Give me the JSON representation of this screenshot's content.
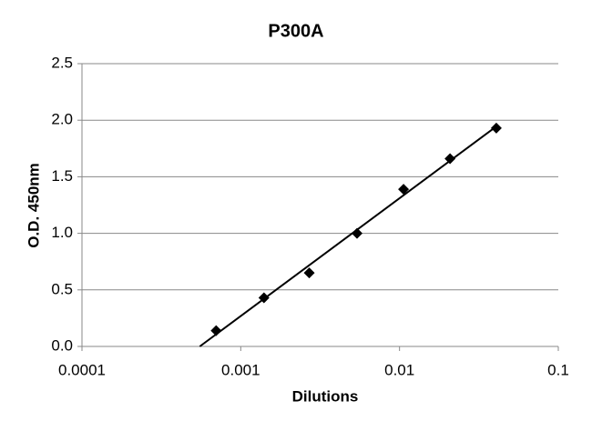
{
  "chart_data": {
    "type": "scatter",
    "title": "P300A",
    "x_label": "Dilutions",
    "y_label": "O.D. 450nm",
    "x": [
      0.0007,
      0.0014,
      0.0027,
      0.0054,
      0.0106,
      0.0208,
      0.0407
    ],
    "values": [
      0.14,
      0.43,
      0.65,
      1.0,
      1.39,
      1.66,
      1.93
    ],
    "color": "#000000",
    "x_log": true,
    "xlim": [
      0.0001,
      0.1
    ],
    "xticks": [
      0.0001,
      0.001,
      0.01,
      0.1
    ],
    "ylim": [
      0,
      2.5
    ],
    "yticks": [
      {
        "value": 0,
        "label": "0.0"
      },
      0.5,
      {
        "value": 1,
        "label": "1.0"
      },
      1.5,
      {
        "value": 2,
        "label": "2.0"
      },
      2.5
    ],
    "grid": true,
    "trendline": "logarithmic"
  }
}
